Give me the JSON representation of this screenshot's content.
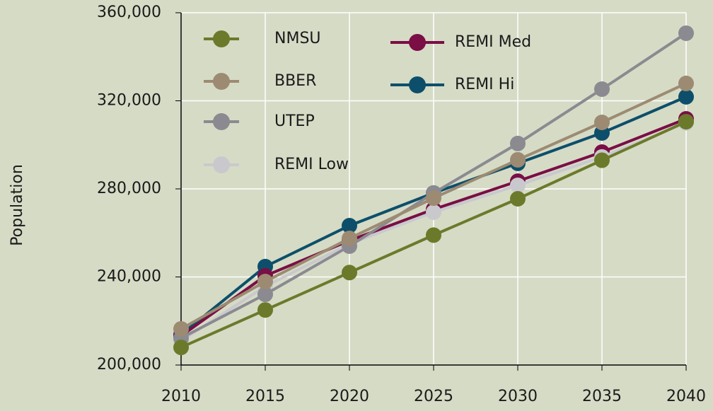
{
  "chart_data": {
    "type": "line",
    "y_label": "Population",
    "x": [
      2010,
      2015,
      2020,
      2025,
      2030,
      2035,
      2040
    ],
    "xlim": [
      2010,
      2040
    ],
    "xticks": [
      2010,
      2015,
      2020,
      2025,
      2030,
      2035,
      2040
    ],
    "ylim": [
      200000,
      360000
    ],
    "yticks": [
      {
        "value": 200000,
        "label": "200,000"
      },
      {
        "value": 240000,
        "label": "240,000"
      },
      {
        "value": 280000,
        "label": "280,000"
      },
      {
        "value": 320000,
        "label": "320,000"
      },
      {
        "value": 360000,
        "label": "360,000"
      }
    ],
    "grid": true,
    "legend": "upper left",
    "series": [
      {
        "name": "NMSU",
        "color": "#6b7a2a",
        "values": [
          208000,
          225000,
          242000,
          259000,
          275500,
          293000,
          310500
        ]
      },
      {
        "name": "BBER",
        "color": "#9c8b72",
        "values": [
          216400,
          237900,
          257500,
          275800,
          293200,
          310200,
          327900
        ]
      },
      {
        "name": "UTEP",
        "color": "#8a8a90",
        "values": [
          212200,
          232100,
          254000,
          278100,
          300600,
          325300,
          350700
        ]
      },
      {
        "name": "REMI Low",
        "color": "#c9c9cd",
        "values": [
          211000,
          235700,
          255000,
          269400,
          281600,
          294500,
          309900
        ]
      },
      {
        "name": "REMI Med",
        "color": "#7a0e45",
        "values": [
          213200,
          240500,
          256500,
          270700,
          283500,
          296700,
          311800
        ]
      },
      {
        "name": "REMI Hi",
        "color": "#0d4f6b",
        "values": [
          213800,
          244700,
          263300,
          278100,
          291600,
          305400,
          321800
        ]
      }
    ]
  }
}
